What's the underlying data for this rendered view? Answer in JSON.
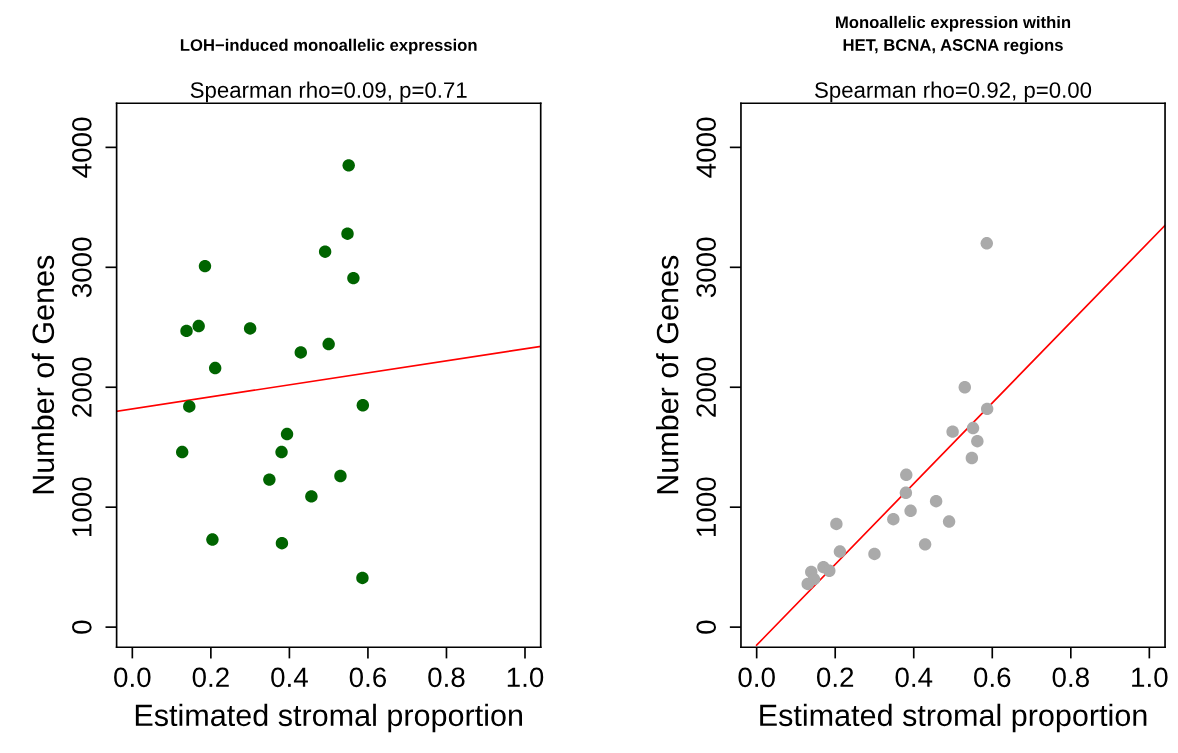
{
  "chart_data": [
    {
      "type": "scatter",
      "title": "LOH−induced monoallelic expression",
      "subtitle": "Spearman rho=0.09, p=0.71",
      "xlabel": "Estimated stromal proportion",
      "ylabel": "Number of Genes",
      "marker": "circle",
      "grid": false,
      "legend": false,
      "xlim": [
        -0.04,
        1.04
      ],
      "ylim": [
        -168,
        4368
      ],
      "xticks": [
        {
          "value": 0,
          "label": "0.0"
        },
        {
          "value": 0.2,
          "label": "0.2"
        },
        {
          "value": 0.4,
          "label": "0.4"
        },
        {
          "value": 0.6,
          "label": "0.6"
        },
        {
          "value": 0.8,
          "label": "0.8"
        },
        {
          "value": 1,
          "label": "1.0"
        }
      ],
      "yticks": [
        0,
        1000,
        2000,
        3000,
        4000
      ],
      "series": [
        {
          "color": "#006400",
          "x": [
            0.551,
            0.548,
            0.491,
            0.185,
            0.563,
            0.138,
            0.169,
            0.3,
            0.429,
            0.5,
            0.211,
            0.145,
            0.587,
            0.394,
            0.127,
            0.38,
            0.53,
            0.349,
            0.456,
            0.204,
            0.381,
            0.586
          ],
          "values": [
            3850,
            3280,
            3130,
            3010,
            2910,
            2470,
            2510,
            2490,
            2290,
            2360,
            2160,
            1840,
            1850,
            1610,
            1460,
            1460,
            1260,
            1230,
            1090,
            730,
            700,
            410
          ]
        },
        {
          "type": "line",
          "color": "#ff0000",
          "marker": "none",
          "x": [
            -0.04,
            1.04
          ],
          "values": [
            1800,
            2340
          ]
        }
      ]
    },
    {
      "type": "scatter",
      "title": "Monoallelic expression within\nHET, BCNA, ASCNA regions",
      "subtitle": "Spearman rho=0.92, p=0.00",
      "xlabel": "Estimated stromal proportion",
      "ylabel": "Number of Genes",
      "marker": "circle",
      "grid": false,
      "legend": false,
      "xlim": [
        -0.04,
        1.04
      ],
      "ylim": [
        -168,
        4368
      ],
      "xticks": [
        {
          "value": 0,
          "label": "0.0"
        },
        {
          "value": 0.2,
          "label": "0.2"
        },
        {
          "value": 0.4,
          "label": "0.4"
        },
        {
          "value": 0.6,
          "label": "0.6"
        },
        {
          "value": 0.8,
          "label": "0.8"
        },
        {
          "value": 1,
          "label": "1.0"
        }
      ],
      "yticks": [
        0,
        1000,
        2000,
        3000,
        4000
      ],
      "series": [
        {
          "color": "#aaaaaa",
          "x": [
            0.586,
            0.53,
            0.587,
            0.499,
            0.551,
            0.562,
            0.548,
            0.381,
            0.38,
            0.457,
            0.392,
            0.348,
            0.49,
            0.203,
            0.429,
            0.212,
            0.3,
            0.17,
            0.185,
            0.139,
            0.146,
            0.13
          ],
          "values": [
            3200,
            2000,
            1820,
            1630,
            1660,
            1550,
            1410,
            1270,
            1120,
            1050,
            970,
            900,
            880,
            860,
            690,
            630,
            610,
            500,
            470,
            460,
            400,
            360
          ]
        },
        {
          "type": "line",
          "color": "#ff0000",
          "marker": "none",
          "x": [
            0,
            1.04
          ],
          "values": [
            -150,
            3350
          ]
        }
      ]
    }
  ]
}
